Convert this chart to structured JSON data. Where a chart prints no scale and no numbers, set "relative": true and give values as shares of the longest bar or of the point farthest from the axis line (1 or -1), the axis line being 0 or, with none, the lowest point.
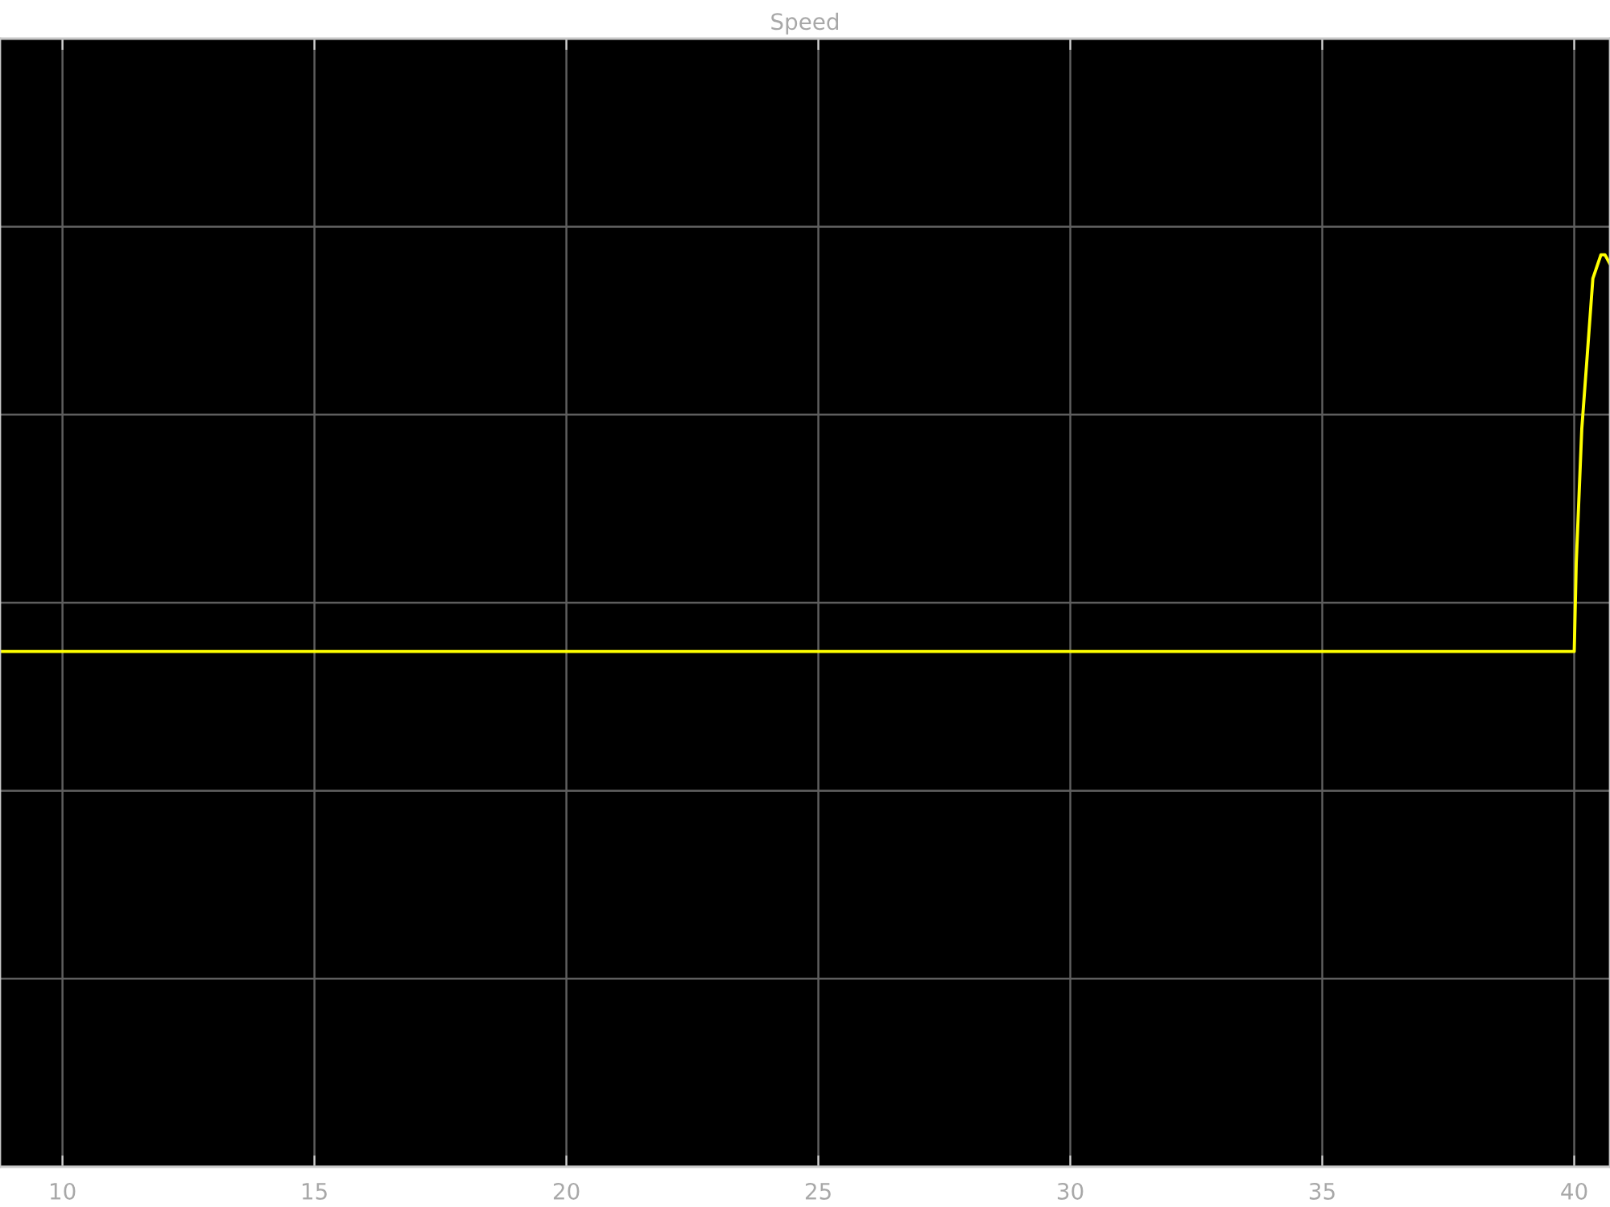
{
  "chart_data": {
    "type": "line",
    "title": "Speed",
    "x": [
      8.76,
      15,
      30,
      40.0,
      40.04,
      40.15,
      40.26,
      40.37,
      40.53,
      40.61,
      40.71
    ],
    "values": [
      0.565,
      0.565,
      0.565,
      0.565,
      0.662,
      0.809,
      0.891,
      0.974,
      1.0,
      1.0,
      0.99
    ],
    "color": "#ffff00",
    "relative": true,
    "xlim": [
      8.76,
      40.71
    ],
    "xticks": [
      10,
      15,
      20,
      25,
      30,
      35,
      40
    ],
    "grid": true,
    "tick_labels": "x",
    "line_style": "solid"
  }
}
